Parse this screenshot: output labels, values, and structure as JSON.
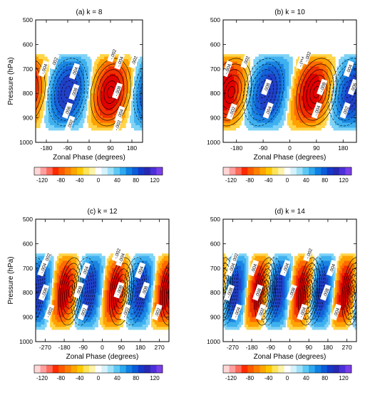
{
  "chart_data": [
    {
      "type": "heatmap",
      "title": "(a) k = 8",
      "xlabel": "Zonal Phase (degrees)",
      "ylabel": "Pressure (hPa)",
      "x_ticks": [
        -180,
        -90,
        0,
        90,
        180
      ],
      "y_ticks": [
        500,
        600,
        700,
        800,
        900,
        1000
      ],
      "xlim": [
        -225,
        225
      ],
      "ylim": [
        1000,
        500
      ],
      "contour_labels": [
        {
          "text": ".002",
          "x": -145,
          "p": 670
        },
        {
          "text": "-.004",
          "x": -190,
          "p": 700
        },
        {
          "text": ".004",
          "x": -60,
          "p": 710
        },
        {
          "text": "-.002",
          "x": 100,
          "p": 640
        },
        {
          "text": "-.004",
          "x": 130,
          "p": 670
        },
        {
          "text": ".002",
          "x": 190,
          "p": 665
        },
        {
          "text": ".008",
          "x": -62,
          "p": 795
        },
        {
          "text": ".006",
          "x": -90,
          "p": 870
        },
        {
          "text": ".002",
          "x": -80,
          "p": 925
        },
        {
          "text": "-.008",
          "x": 120,
          "p": 790
        },
        {
          "text": "-.004",
          "x": 130,
          "p": 885
        },
        {
          "text": "-.002",
          "x": 120,
          "p": 930
        }
      ]
    },
    {
      "type": "heatmap",
      "title": "(b) k = 10",
      "xlabel": "Zonal Phase (degrees)",
      "ylabel": "",
      "x_ticks": [
        -180,
        -90,
        0,
        90,
        180
      ],
      "y_ticks": [
        500,
        600,
        700,
        800,
        900,
        1000
      ],
      "xlim": [
        -225,
        225
      ],
      "ylim": [
        1000,
        500
      ],
      "contour_labels": [
        {
          "text": ".002",
          "x": -147,
          "p": 665
        },
        {
          "text": "-.004",
          "x": 40,
          "p": 670
        },
        {
          "text": "-.002",
          "x": 60,
          "p": 650
        },
        {
          "text": "-.004",
          "x": -210,
          "p": 700
        },
        {
          "text": ".004",
          "x": 200,
          "p": 700
        },
        {
          "text": ".008",
          "x": -78,
          "p": 775
        },
        {
          "text": "-.008",
          "x": 110,
          "p": 775
        },
        {
          "text": ".006",
          "x": 215,
          "p": 775
        },
        {
          "text": "-.002",
          "x": -195,
          "p": 875
        },
        {
          "text": ".004",
          "x": -72,
          "p": 870
        },
        {
          "text": "-.004",
          "x": 92,
          "p": 870
        },
        {
          "text": ".002",
          "x": 188,
          "p": 870
        }
      ]
    },
    {
      "type": "heatmap",
      "title": "(c) k = 12",
      "xlabel": "Zonal Phase (degrees)",
      "ylabel": "Pressure (hPa)",
      "x_ticks": [
        -270,
        -180,
        -90,
        0,
        90,
        180,
        270
      ],
      "y_ticks": [
        500,
        600,
        700,
        800,
        900,
        1000
      ],
      "xlim": [
        -315,
        315
      ],
      "ylim": [
        1000,
        500
      ],
      "contour_labels": [
        {
          "text": "-.002",
          "x": -260,
          "p": 660
        },
        {
          "text": "-.004",
          "x": -280,
          "p": 700
        },
        {
          "text": "-.004",
          "x": 90,
          "p": 660
        },
        {
          "text": "-.002",
          "x": 70,
          "p": 640
        },
        {
          "text": ".004",
          "x": -80,
          "p": 710
        },
        {
          "text": ".004",
          "x": 180,
          "p": 710
        },
        {
          "text": "-.006",
          "x": -275,
          "p": 800
        },
        {
          "text": ".008",
          "x": -110,
          "p": 790
        },
        {
          "text": "-.008",
          "x": 80,
          "p": 790
        },
        {
          "text": ".008",
          "x": 200,
          "p": 790
        },
        {
          "text": "-.002",
          "x": -250,
          "p": 880
        },
        {
          "text": ".002",
          "x": -90,
          "p": 880
        },
        {
          "text": "-.002",
          "x": 110,
          "p": 880
        },
        {
          "text": ".002",
          "x": 260,
          "p": 880
        }
      ]
    },
    {
      "type": "heatmap",
      "title": "(d) k = 14",
      "xlabel": "Zonal Phase (degrees)",
      "ylabel": "",
      "x_ticks": [
        -270,
        -180,
        -90,
        0,
        90,
        180,
        270
      ],
      "y_ticks": [
        500,
        600,
        700,
        800,
        900,
        1000
      ],
      "xlim": [
        -315,
        315
      ],
      "ylim": [
        1000,
        500
      ],
      "contour_labels": [
        {
          "text": "-.002",
          "x": -260,
          "p": 660
        },
        {
          "text": "-.004",
          "x": -275,
          "p": 700
        },
        {
          "text": ".004",
          "x": -170,
          "p": 700
        },
        {
          "text": "-.004",
          "x": -20,
          "p": 700
        },
        {
          "text": ".004",
          "x": 200,
          "p": 700
        },
        {
          "text": "-.002",
          "x": 90,
          "p": 640
        },
        {
          "text": "-.008",
          "x": -285,
          "p": 800
        },
        {
          "text": ".008",
          "x": -150,
          "p": 800
        },
        {
          "text": "-.008",
          "x": 10,
          "p": 800
        },
        {
          "text": ".008",
          "x": 170,
          "p": 800
        },
        {
          "text": "-.004",
          "x": -250,
          "p": 880
        },
        {
          "text": ".002",
          "x": -135,
          "p": 880
        },
        {
          "text": "-.004",
          "x": 60,
          "p": 880
        },
        {
          "text": ".004",
          "x": 220,
          "p": 880
        }
      ]
    }
  ],
  "colorbar": {
    "tick_labels": [
      "-120",
      "-80",
      "-40",
      "0",
      "40",
      "80",
      "120"
    ],
    "colors": [
      "#ffd6d6",
      "#ff9e9e",
      "#ff6a5a",
      "#ff2a00",
      "#ff5a00",
      "#ff8000",
      "#ffa500",
      "#ffc800",
      "#ffe45a",
      "#fff3a8",
      "#ffffff",
      "#d6f2fc",
      "#9fe1f8",
      "#5ec8f4",
      "#2ea8ee",
      "#1080e2",
      "#0a5cd8",
      "#1438c8",
      "#2828b0",
      "#4a30d8",
      "#7a3fe8"
    ]
  },
  "colors": {
    "positive_max": "#1e50d2",
    "negative_max": "#e60000",
    "contour": "#000000"
  }
}
